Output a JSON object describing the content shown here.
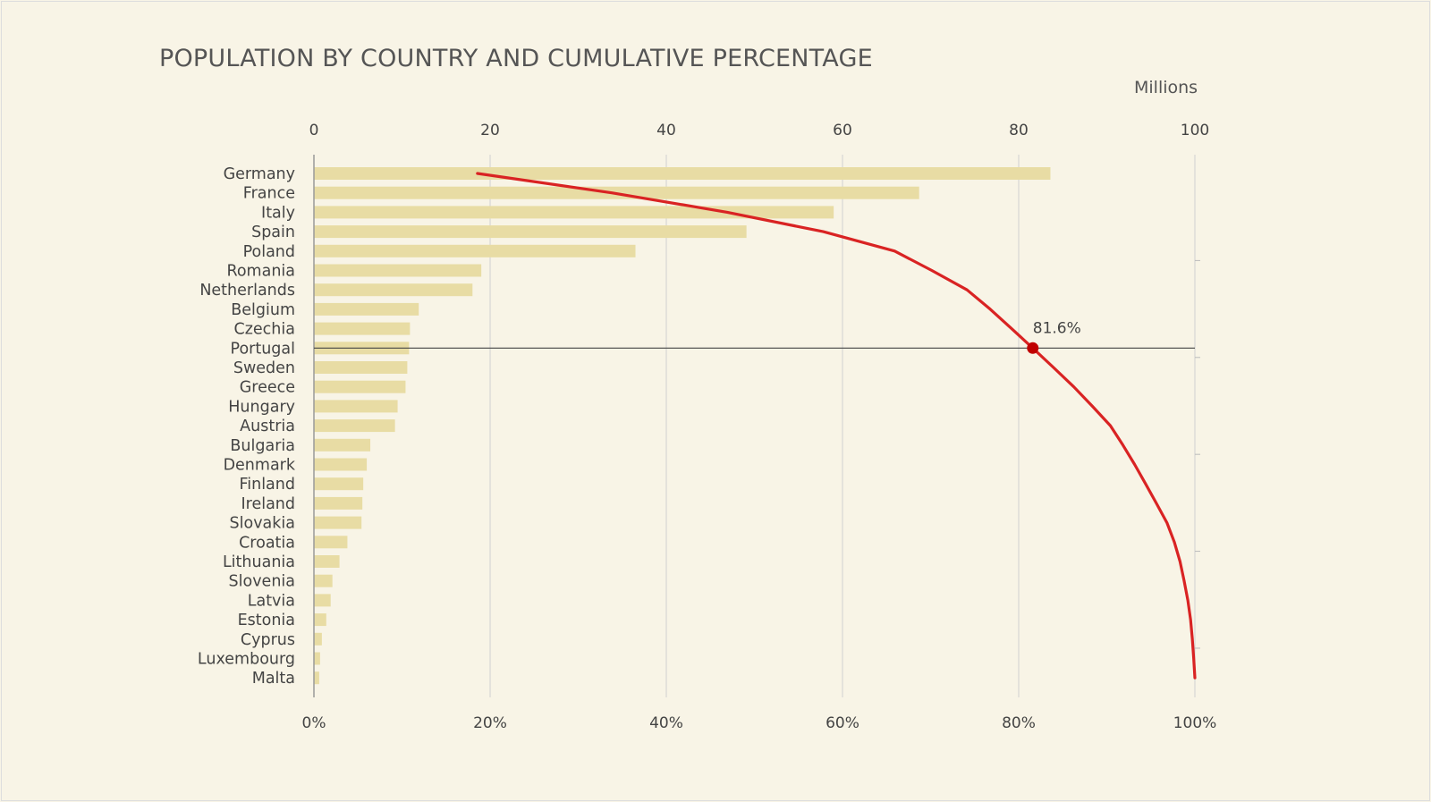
{
  "chart_data": {
    "type": "bar+line",
    "title": "POPULATION BY COUNTRY AND CUMULATIVE PERCENTAGE",
    "top_axis_label": "Millions",
    "top_axis_ticks": [
      "0",
      "20",
      "40",
      "60",
      "80",
      "100"
    ],
    "bottom_axis_ticks": [
      "0%",
      "20%",
      "40%",
      "60%",
      "80%",
      "100%"
    ],
    "xlim": [
      0,
      100
    ],
    "grid": true,
    "categories": [
      "Germany",
      "France",
      "Italy",
      "Spain",
      "Poland",
      "Romania",
      "Netherlands",
      "Belgium",
      "Czechia",
      "Portugal",
      "Sweden",
      "Greece",
      "Hungary",
      "Austria",
      "Bulgaria",
      "Denmark",
      "Finland",
      "Ireland",
      "Slovakia",
      "Croatia",
      "Lithuania",
      "Slovenia",
      "Latvia",
      "Estonia",
      "Cyprus",
      "Luxembourg",
      "Malta"
    ],
    "values": [
      83.6,
      68.7,
      59.0,
      49.1,
      36.5,
      19.0,
      18.0,
      11.9,
      10.9,
      10.8,
      10.6,
      10.4,
      9.5,
      9.2,
      6.4,
      6.0,
      5.6,
      5.5,
      5.4,
      3.8,
      2.9,
      2.1,
      1.9,
      1.4,
      0.9,
      0.7,
      0.6
    ],
    "cumulative_line": "cumulative percentage of total population",
    "highlight": {
      "category": "Portugal",
      "label": "81.6%",
      "value": 81.6
    },
    "colors": {
      "bar": "#e8dca4",
      "line": "#d92323",
      "marker": "#c00000",
      "background": "#f8f4e6"
    }
  }
}
